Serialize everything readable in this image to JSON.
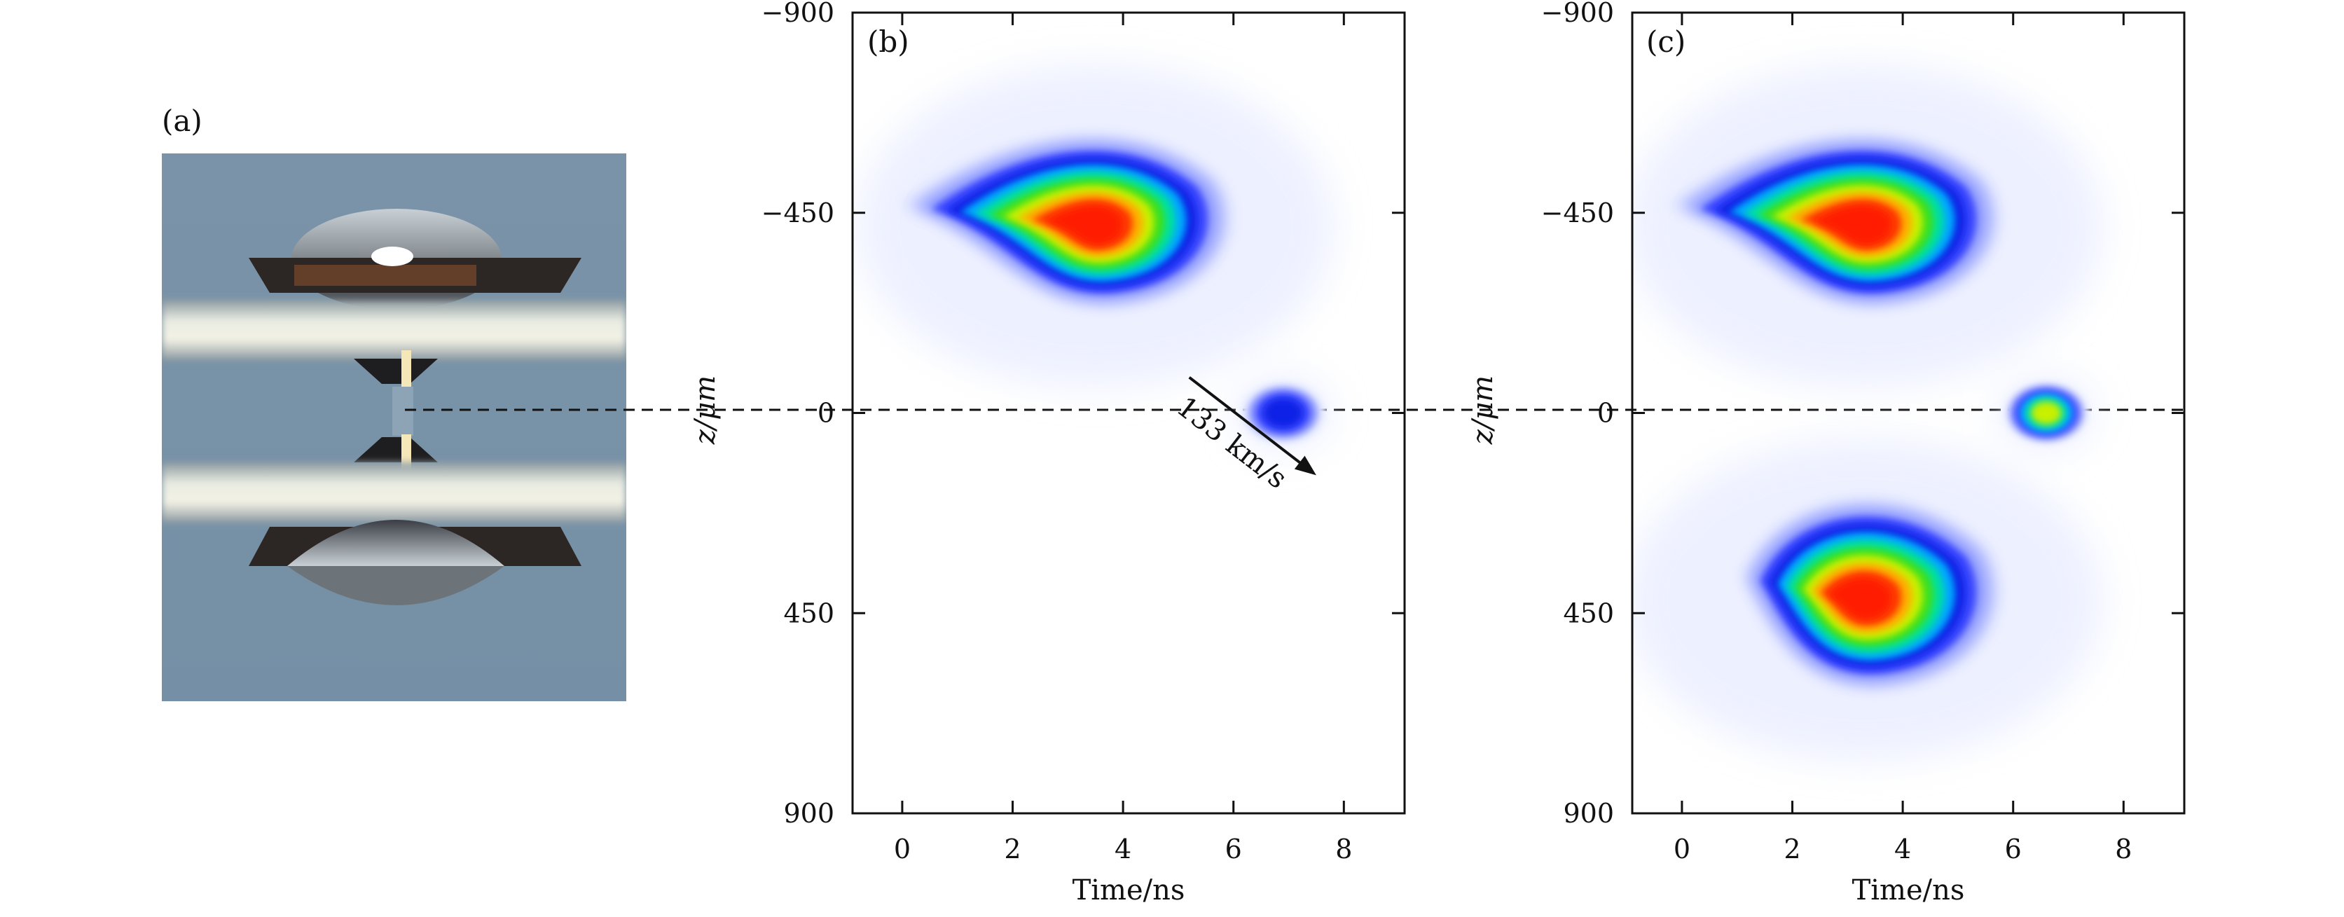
{
  "figure": {
    "panel_a_label": "(a)",
    "panel_b_label": "(b)",
    "panel_c_label": "(c)"
  },
  "chart_data": [
    {
      "type": "heatmap",
      "panel": "(b)",
      "xlabel": "Time/ns",
      "ylabel": "z/μm",
      "xlim": [
        -0.9,
        9.1
      ],
      "ylim": [
        -900,
        900
      ],
      "y_inverted": true,
      "xticks": [
        "0",
        "2",
        "4",
        "6",
        "8"
      ],
      "yticks": [
        "−900",
        "−450",
        "0",
        "450",
        "900"
      ],
      "colormap": "white-blue-cyan-green-yellow-red",
      "blobs": [
        {
          "t": 3.5,
          "z": -420,
          "peak": 1.0
        },
        {
          "t": 6.9,
          "z": 0,
          "peak": 0.5
        }
      ],
      "annotation": {
        "text": "133 km/s",
        "arrow_from": [
          5.2,
          -80
        ],
        "arrow_to": [
          7.5,
          140
        ]
      }
    },
    {
      "type": "heatmap",
      "panel": "(c)",
      "xlabel": "Time/ns",
      "ylabel": "z/μm",
      "xlim": [
        -0.9,
        9.1
      ],
      "ylim": [
        -900,
        900
      ],
      "y_inverted": true,
      "xticks": [
        "0",
        "2",
        "4",
        "6",
        "8"
      ],
      "yticks": [
        "−900",
        "−450",
        "0",
        "450",
        "900"
      ],
      "colormap": "white-blue-cyan-green-yellow-red",
      "blobs": [
        {
          "t": 3.3,
          "z": -420,
          "peak": 1.0
        },
        {
          "t": 6.6,
          "z": 0,
          "peak": 0.7
        },
        {
          "t": 3.3,
          "z": 420,
          "peak": 1.0
        }
      ]
    }
  ]
}
